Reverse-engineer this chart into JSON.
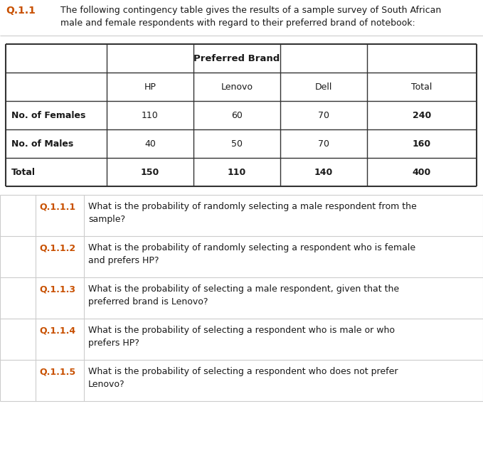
{
  "header_text": "Q.1.1",
  "header_line1": "The following contingency table gives the results of a sample survey of South African",
  "header_line2": "male and female respondents with regard to their preferred brand of notebook:",
  "table_header_merged": "Preferred Brand",
  "col_headers": [
    "HP",
    "Lenovo",
    "Dell",
    "Total"
  ],
  "row_labels": [
    "No. of Females",
    "No. of Males",
    "Total"
  ],
  "data": [
    [
      110,
      60,
      70,
      240
    ],
    [
      40,
      50,
      70,
      160
    ],
    [
      150,
      110,
      140,
      400
    ]
  ],
  "questions": [
    {
      "num": "Q.1.1.1",
      "text_line1": "What is the probability of randomly selecting a male respondent from the",
      "text_line2": "sample?"
    },
    {
      "num": "Q.1.1.2",
      "text_line1": "What is the probability of randomly selecting a respondent who is female",
      "text_line2": "and prefers HP?"
    },
    {
      "num": "Q.1.1.3",
      "text_line1": "What is the probability of selecting a male respondent, given that the",
      "text_line2": "preferred brand is Lenovo?"
    },
    {
      "num": "Q.1.1.4",
      "text_line1": "What is the probability of selecting a respondent who is male or who",
      "text_line2": "prefers HP?"
    },
    {
      "num": "Q.1.1.5",
      "text_line1": "What is the probability of selecting a respondent who does not prefer",
      "text_line2": "Lenovo?"
    }
  ],
  "bg_color": "#ffffff",
  "text_color_dark": "#1a1a1a",
  "header_num_color": "#c85000",
  "table_border_color": "#333333",
  "table_inner_color": "#555555",
  "q_line_color": "#cccccc",
  "figw": 6.79,
  "figh": 6.37,
  "dpi": 100
}
